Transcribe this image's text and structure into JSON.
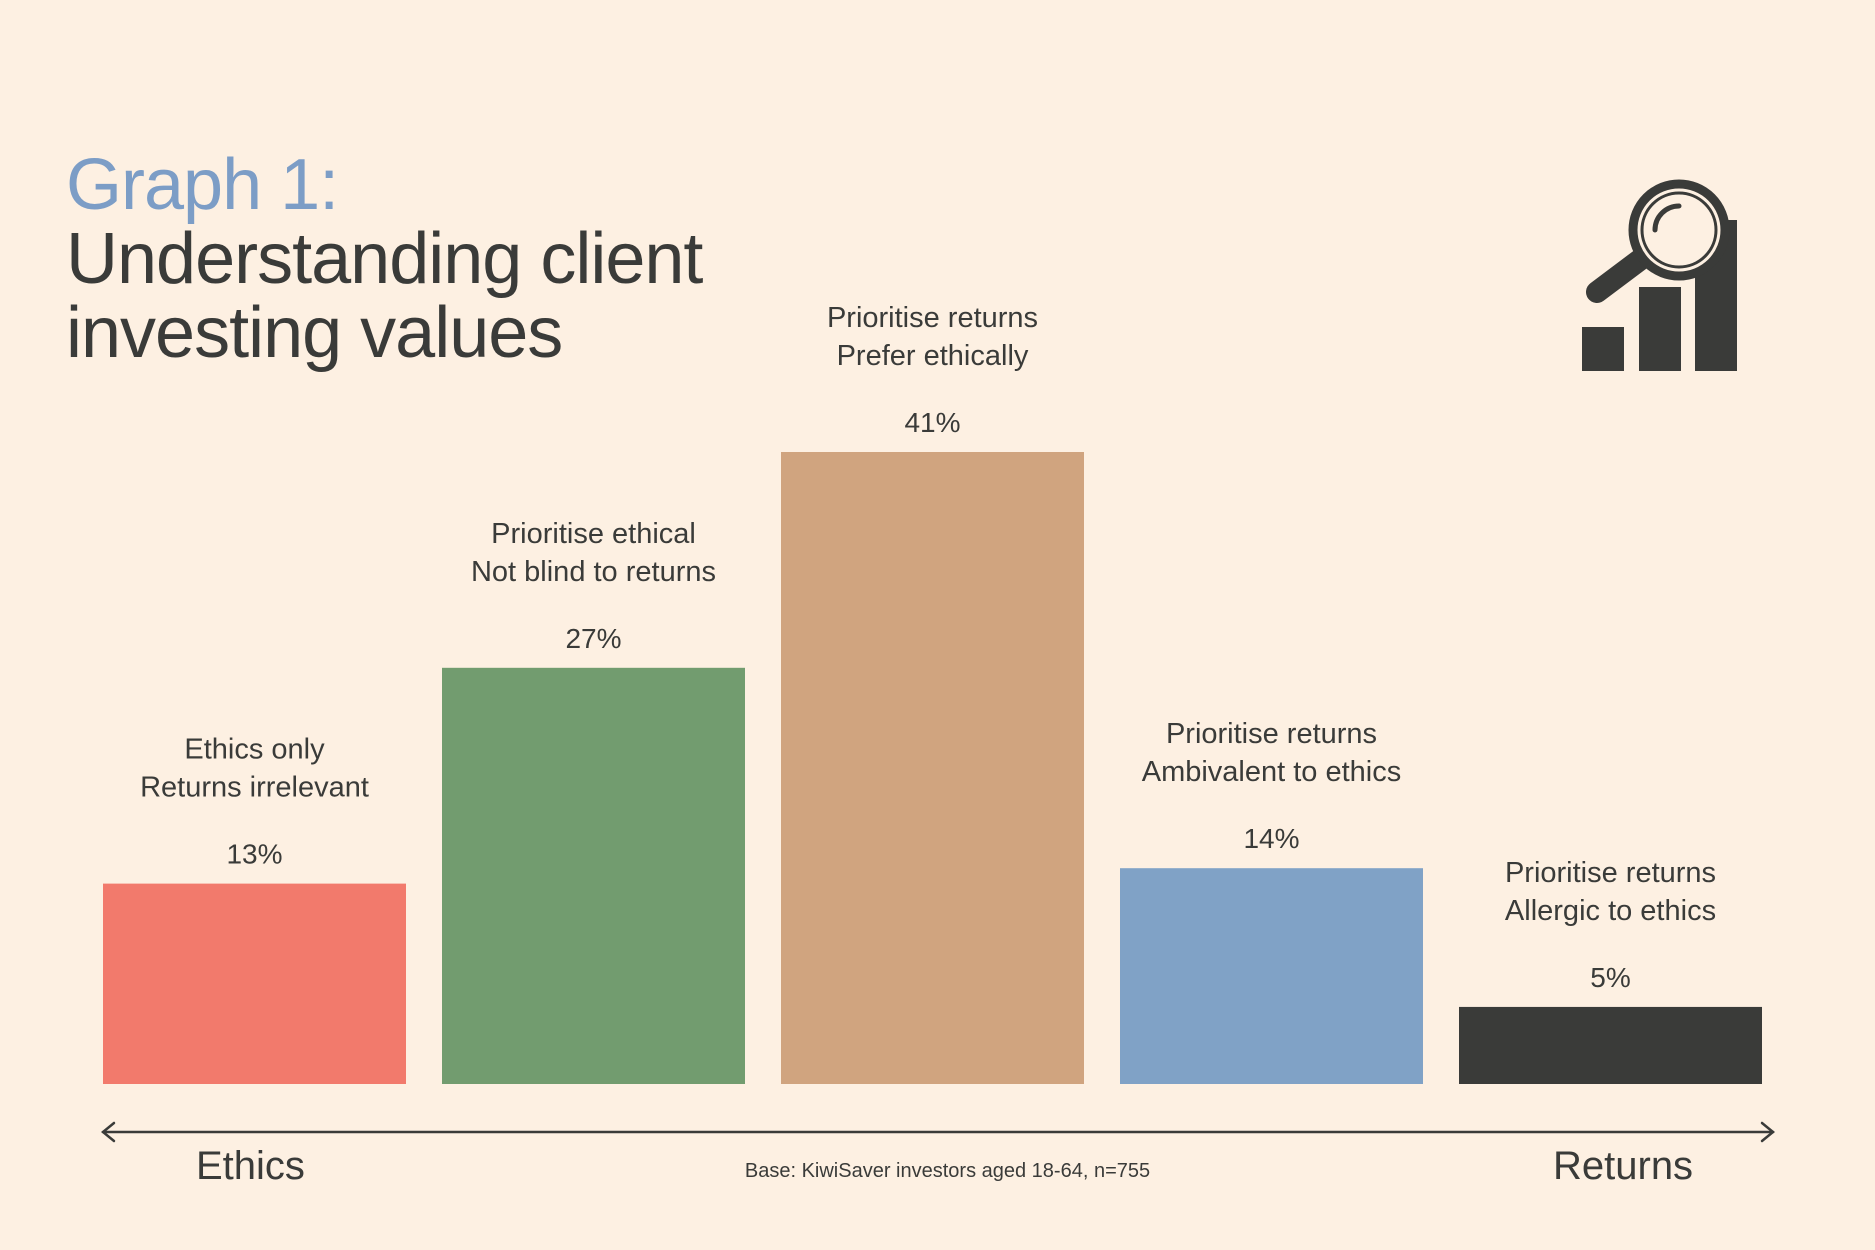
{
  "title": {
    "line1": "Graph 1:",
    "line2": "Understanding client",
    "line3": "investing values"
  },
  "icon": "magnifier-bar-chart-icon",
  "colors": {
    "background": "#fdf0e2",
    "title_accent": "#7c9dc6",
    "text": "#3a3b39"
  },
  "chart_data": {
    "type": "bar",
    "categories": [
      [
        "Ethics only",
        "Returns irrelevant"
      ],
      [
        "Prioritise ethical",
        "Not blind to returns"
      ],
      [
        "Prioritise returns",
        "Prefer ethically"
      ],
      [
        "Prioritise returns",
        "Ambivalent to ethics"
      ],
      [
        "Prioritise returns",
        "Allergic to ethics"
      ]
    ],
    "values": [
      13,
      27,
      41,
      14,
      5
    ],
    "value_labels": [
      "13%",
      "27%",
      "41%",
      "14%",
      "5%"
    ],
    "bar_colors": [
      "#f27a6c",
      "#729c6f",
      "#d0a47f",
      "#80a2c6",
      "#3a3b39"
    ],
    "ylim": [
      0,
      41
    ],
    "axis": {
      "left_label": "Ethics",
      "right_label": "Returns",
      "arrow": "double-headed"
    }
  },
  "note": "Base: KiwiSaver investors aged 18-64, n=755"
}
